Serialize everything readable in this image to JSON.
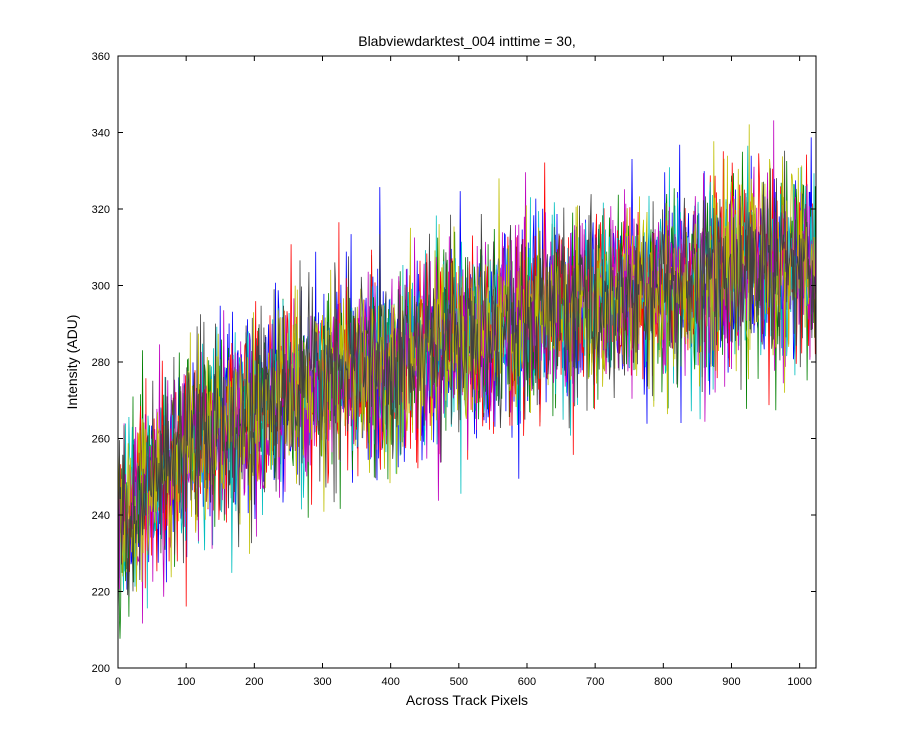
{
  "chart_data": {
    "type": "line",
    "title": "Blabviewdarktest_004 inttime = 30,",
    "xlabel": "Across Track Pixels",
    "ylabel": "Intensity (ADU)",
    "xlim": [
      0,
      1024
    ],
    "ylim": [
      200,
      360
    ],
    "xticks": [
      0,
      100,
      200,
      300,
      400,
      500,
      600,
      700,
      800,
      900,
      1000
    ],
    "yticks": [
      200,
      220,
      240,
      260,
      280,
      300,
      320,
      340,
      360
    ],
    "grid": false,
    "legend": "none",
    "series_colors": [
      "#0000ff",
      "#008000",
      "#ff0000",
      "#00bfbf",
      "#bf00bf",
      "#bfbf00",
      "#404040"
    ],
    "trend": {
      "x": [
        0,
        50,
        100,
        150,
        200,
        300,
        400,
        500,
        600,
        700,
        800,
        900,
        1024
      ],
      "y": [
        238,
        248,
        256,
        263,
        268,
        275,
        281,
        286,
        290,
        295,
        299,
        303,
        307
      ]
    },
    "noise_amplitude_adu": 12,
    "series_count": 7
  }
}
